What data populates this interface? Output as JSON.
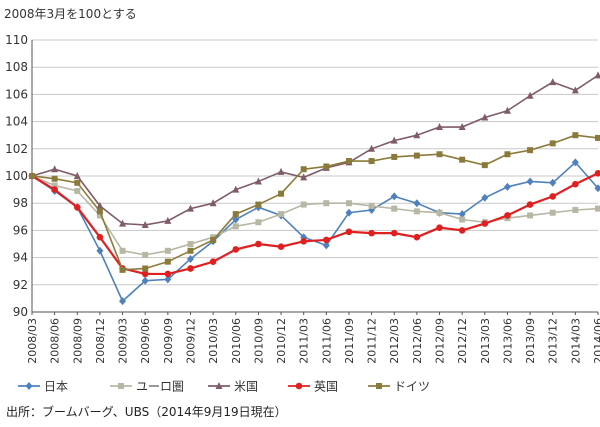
{
  "chart_data": {
    "type": "line",
    "subtitle": "2008年3月を100とする",
    "ylim": [
      90,
      110
    ],
    "yticks": [
      90,
      92,
      94,
      96,
      98,
      100,
      102,
      104,
      106,
      108,
      110
    ],
    "grid": true,
    "legend_placement": "bottom-left",
    "categories": [
      "2008/03",
      "2008/06",
      "2008/09",
      "2008/12",
      "2009/03",
      "2009/06",
      "2009/09",
      "2009/12",
      "2010/03",
      "2010/06",
      "2010/09",
      "2010/12",
      "2011/03",
      "2011/06",
      "2011/09",
      "2011/12",
      "2012/03",
      "2012/06",
      "2012/09",
      "2012/12",
      "2013/03",
      "2013/06",
      "2013/09",
      "2013/12",
      "2014/03",
      "2014/06"
    ],
    "series": [
      {
        "name": "日本",
        "color": "#4f81bd",
        "marker": "diamond",
        "values": [
          100.0,
          98.9,
          97.7,
          94.5,
          90.8,
          92.3,
          92.4,
          93.9,
          95.2,
          96.8,
          97.7,
          97.1,
          95.5,
          94.9,
          97.3,
          97.5,
          98.5,
          98.0,
          97.3,
          97.2,
          98.4,
          99.2,
          99.6,
          99.5,
          101.0,
          99.1
        ]
      },
      {
        "name": "ユーロ圏",
        "color": "#b7b7a4",
        "marker": "square",
        "values": [
          100.0,
          99.3,
          98.9,
          97.1,
          94.5,
          94.2,
          94.5,
          95.0,
          95.5,
          96.3,
          96.6,
          97.2,
          97.9,
          98.0,
          98.0,
          97.8,
          97.6,
          97.4,
          97.3,
          96.8,
          96.6,
          96.9,
          97.1,
          97.3,
          97.5,
          97.6
        ]
      },
      {
        "name": "米国",
        "color": "#7f5c68",
        "marker": "triangle",
        "values": [
          100.0,
          100.5,
          100.0,
          97.8,
          96.5,
          96.4,
          96.7,
          97.6,
          98.0,
          99.0,
          99.6,
          100.3,
          99.9,
          100.6,
          101.0,
          102.0,
          102.6,
          103.0,
          103.6,
          103.6,
          104.3,
          104.8,
          105.9,
          106.9,
          106.3,
          107.4
        ]
      },
      {
        "name": "英国",
        "color": "#e02020",
        "marker": "circle",
        "values": [
          100.0,
          99.0,
          97.7,
          95.5,
          93.2,
          92.8,
          92.8,
          93.2,
          93.7,
          94.6,
          95.0,
          94.8,
          95.2,
          95.3,
          95.9,
          95.8,
          95.8,
          95.5,
          96.2,
          96.0,
          96.5,
          97.1,
          97.9,
          98.5,
          99.4,
          100.2
        ]
      },
      {
        "name": "ドイツ",
        "color": "#8b7b3a",
        "marker": "square",
        "values": [
          100.0,
          99.8,
          99.5,
          97.4,
          93.1,
          93.2,
          93.7,
          94.5,
          95.3,
          97.2,
          97.9,
          98.7,
          100.5,
          100.7,
          101.1,
          101.1,
          101.4,
          101.5,
          101.6,
          101.2,
          100.8,
          101.6,
          101.9,
          102.4,
          103.0,
          102.8
        ]
      }
    ]
  },
  "source": "出所：ブームバーグ、UBS（2014年9月19日現在）"
}
